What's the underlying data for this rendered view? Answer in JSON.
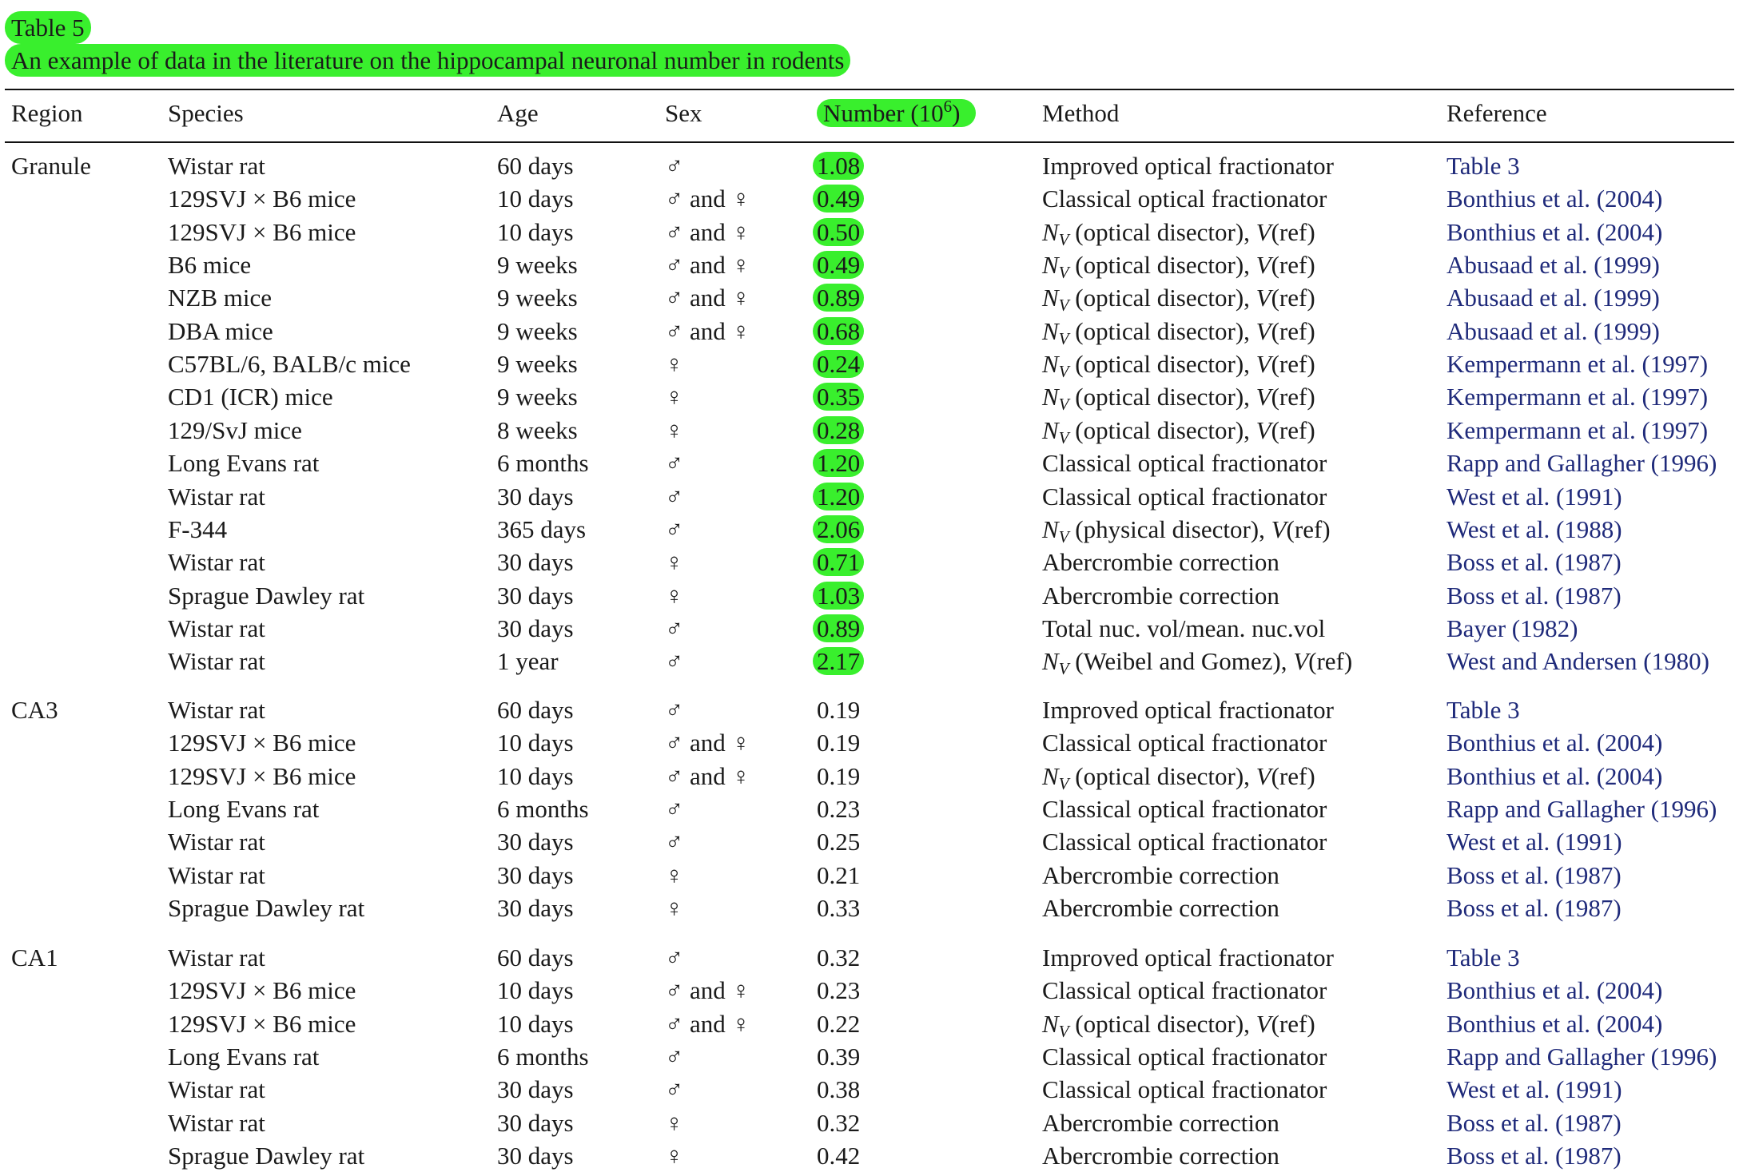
{
  "caption": {
    "label": "Table 5",
    "title": "An example of data in the literature on the hippocampal neuronal number in rodents"
  },
  "headers": {
    "region": "Region",
    "species": "Species",
    "age": "Age",
    "sex": "Sex",
    "number": "Number (10",
    "number_exp": "6",
    "number_close": ")",
    "method": "Method",
    "reference": "Reference"
  },
  "groups": [
    {
      "region": "Granule",
      "highlight_numbers": true,
      "rows": [
        {
          "species": "Wistar rat",
          "age": "60 days",
          "sex": "♂",
          "number": "1.08",
          "method": "Improved optical fractionator",
          "reference": "Table 3"
        },
        {
          "species": "129SVJ × B6 mice",
          "age": "10 days",
          "sex": "♂ and ♀",
          "number": "0.49",
          "method": "Classical optical fractionator",
          "reference": "Bonthius et al. (2004)"
        },
        {
          "species": "129SVJ × B6 mice",
          "age": "10 days",
          "sex": "♂ and ♀",
          "number": "0.50",
          "method": "NV_OD",
          "reference": "Bonthius et al. (2004)"
        },
        {
          "species": "B6 mice",
          "age": "9 weeks",
          "sex": "♂ and ♀",
          "number": "0.49",
          "method": "NV_OD",
          "reference": "Abusaad et al. (1999)"
        },
        {
          "species": "NZB mice",
          "age": "9 weeks",
          "sex": "♂ and ♀",
          "number": "0.89",
          "method": "NV_OD",
          "reference": "Abusaad et al. (1999)"
        },
        {
          "species": "DBA mice",
          "age": "9 weeks",
          "sex": "♂ and ♀",
          "number": "0.68",
          "method": "NV_OD",
          "reference": "Abusaad et al. (1999)"
        },
        {
          "species": "C57BL/6, BALB/c mice",
          "age": "9 weeks",
          "sex": "♀",
          "number": "0.24",
          "method": "NV_OD",
          "reference": "Kempermann et al. (1997)"
        },
        {
          "species": "CD1 (ICR) mice",
          "age": "9 weeks",
          "sex": "♀",
          "number": "0.35",
          "method": "NV_OD",
          "reference": "Kempermann et al. (1997)"
        },
        {
          "species": "129/SvJ mice",
          "age": "8 weeks",
          "sex": "♀",
          "number": "0.28",
          "method": "NV_OD",
          "reference": "Kempermann et al. (1997)"
        },
        {
          "species": "Long Evans rat",
          "age": "6 months",
          "sex": "♂",
          "number": "1.20",
          "method": "Classical optical fractionator",
          "reference": "Rapp and Gallagher (1996)"
        },
        {
          "species": "Wistar rat",
          "age": "30 days",
          "sex": "♂",
          "number": "1.20",
          "method": "Classical optical fractionator",
          "reference": "West et al. (1991)"
        },
        {
          "species": "F-344",
          "age": "365 days",
          "sex": "♂",
          "number": "2.06",
          "method": "NV_PD",
          "reference": "West et al. (1988)"
        },
        {
          "species": "Wistar rat",
          "age": "30 days",
          "sex": "♀",
          "number": "0.71",
          "method": "Abercrombie correction",
          "reference": "Boss et al. (1987)"
        },
        {
          "species": "Sprague Dawley rat",
          "age": "30 days",
          "sex": "♀",
          "number": "1.03",
          "method": "Abercrombie correction",
          "reference": "Boss et al. (1987)"
        },
        {
          "species": "Wistar rat",
          "age": "30 days",
          "sex": "♂",
          "number": "0.89",
          "method": "Total nuc. vol/mean. nuc.vol",
          "reference": "Bayer (1982)"
        },
        {
          "species": "Wistar rat",
          "age": "1 year",
          "sex": "♂",
          "number": "2.17",
          "method": "NV_WG",
          "reference": "West and Andersen (1980)"
        }
      ]
    },
    {
      "region": "CA3",
      "highlight_numbers": false,
      "rows": [
        {
          "species": "Wistar rat",
          "age": "60 days",
          "sex": "♂",
          "number": "0.19",
          "method": "Improved optical fractionator",
          "reference": "Table 3"
        },
        {
          "species": "129SVJ × B6 mice",
          "age": "10 days",
          "sex": "♂ and ♀",
          "number": "0.19",
          "method": "Classical optical fractionator",
          "reference": "Bonthius et al. (2004)"
        },
        {
          "species": "129SVJ × B6 mice",
          "age": "10 days",
          "sex": "♂ and ♀",
          "number": "0.19",
          "method": "NV_OD",
          "reference": "Bonthius et al. (2004)"
        },
        {
          "species": "Long Evans rat",
          "age": "6 months",
          "sex": "♂",
          "number": "0.23",
          "method": "Classical optical fractionator",
          "reference": "Rapp and Gallagher (1996)"
        },
        {
          "species": "Wistar rat",
          "age": "30 days",
          "sex": "♂",
          "number": "0.25",
          "method": "Classical optical fractionator",
          "reference": "West et al. (1991)"
        },
        {
          "species": "Wistar rat",
          "age": "30 days",
          "sex": "♀",
          "number": "0.21",
          "method": "Abercrombie correction",
          "reference": "Boss et al. (1987)"
        },
        {
          "species": "Sprague Dawley rat",
          "age": "30 days",
          "sex": "♀",
          "number": "0.33",
          "method": "Abercrombie correction",
          "reference": "Boss et al. (1987)"
        }
      ]
    },
    {
      "region": "CA1",
      "highlight_numbers": false,
      "rows": [
        {
          "species": "Wistar rat",
          "age": "60 days",
          "sex": "♂",
          "number": "0.32",
          "method": "Improved optical fractionator",
          "reference": "Table 3"
        },
        {
          "species": "129SVJ × B6 mice",
          "age": "10 days",
          "sex": "♂ and ♀",
          "number": "0.23",
          "method": "Classical optical fractionator",
          "reference": "Bonthius et al. (2004)"
        },
        {
          "species": "129SVJ × B6 mice",
          "age": "10 days",
          "sex": "♂ and ♀",
          "number": "0.22",
          "method": "NV_OD",
          "reference": "Bonthius et al. (2004)"
        },
        {
          "species": "Long Evans rat",
          "age": "6 months",
          "sex": "♂",
          "number": "0.39",
          "method": "Classical optical fractionator",
          "reference": "Rapp and Gallagher (1996)"
        },
        {
          "species": "Wistar rat",
          "age": "30 days",
          "sex": "♂",
          "number": "0.38",
          "method": "Classical optical fractionator",
          "reference": "West et al. (1991)"
        },
        {
          "species": "Wistar rat",
          "age": "30 days",
          "sex": "♀",
          "number": "0.32",
          "method": "Abercrombie correction",
          "reference": "Boss et al. (1987)"
        },
        {
          "species": "Sprague Dawley rat",
          "age": "30 days",
          "sex": "♀",
          "number": "0.42",
          "method": "Abercrombie correction",
          "reference": "Boss et al. (1987)"
        }
      ]
    }
  ],
  "method_formats": {
    "NV_OD": {
      "symbol": "N",
      "sub": "V",
      "text": " (optical disector), ",
      "v": "V",
      "tail": "(ref)"
    },
    "NV_PD": {
      "symbol": "N",
      "sub": "V",
      "text": " (physical disector), ",
      "v": "V",
      "tail": "(ref)"
    },
    "NV_WG": {
      "symbol": "N",
      "sub": "V",
      "text": " (Weibel and Gomez), ",
      "v": "V",
      "tail": "(ref)"
    }
  },
  "colors": {
    "highlight": "#39ef2d",
    "reference_link": "#1f2a7a",
    "text": "#1a1a1a"
  }
}
